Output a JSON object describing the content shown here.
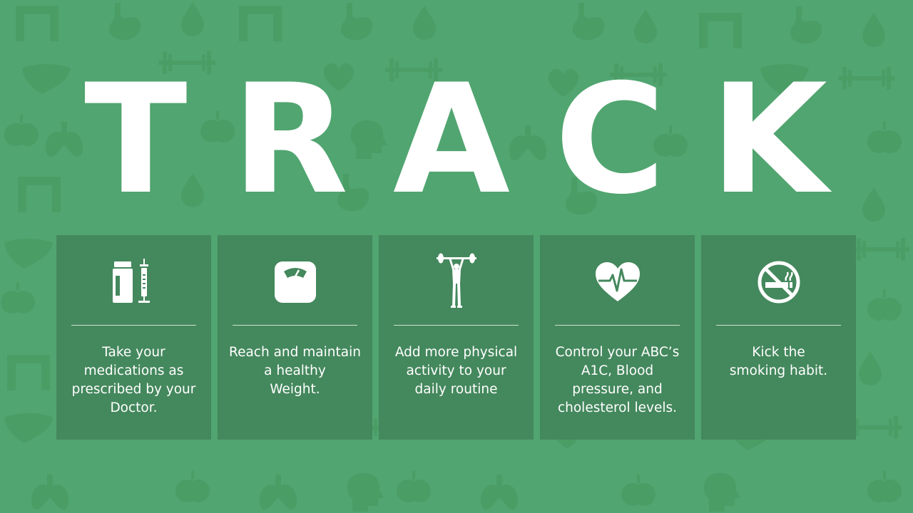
{
  "slide": {
    "title_letters": [
      "T",
      "R",
      "A",
      "C",
      "K"
    ],
    "background_color": "#51a570",
    "card_color": "#44885d",
    "cards": [
      {
        "icon": "medication-syringe-icon",
        "text": "Take your\nmedications as\nprescribed by your\nDoctor."
      },
      {
        "icon": "weighing-scale-icon",
        "text": "Reach and maintain\na healthy\nWeight."
      },
      {
        "icon": "weightlifter-icon",
        "text": "Add more physical\nactivity to  your\ndaily routine"
      },
      {
        "icon": "heartbeat-icon",
        "text": "Control your ABC’s\nA1C, Blood\npressure, and\ncholesterol levels."
      },
      {
        "icon": "no-smoking-icon",
        "text": "Kick the\nsmoking habit."
      }
    ]
  }
}
